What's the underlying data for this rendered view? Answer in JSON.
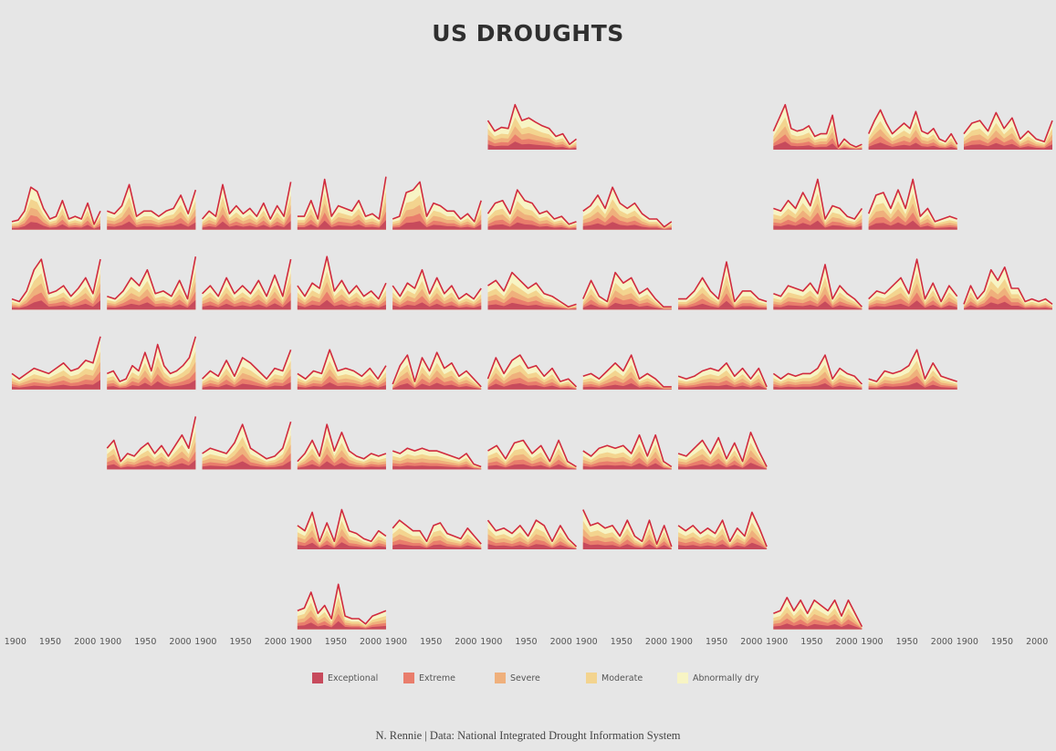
{
  "title": "US DROUGHTS",
  "caption": "N. Rennie | Data: National Integrated Drought Information System",
  "chart_data": {
    "type": "area",
    "layout": "small multiples (state tile grid map), stacked area per state",
    "x_range": [
      1895,
      2022
    ],
    "x_ticks": [
      "1900",
      "1950",
      "2000"
    ],
    "colors": {
      "Abnormally dry": "#f7f4c4",
      "Moderate": "#f3d48f",
      "Severe": "#efb07c",
      "Extreme": "#e97d6c",
      "Exceptional": "#c74a5c",
      "outline": "#d02a3e"
    },
    "legend": [
      {
        "label": "Exceptional",
        "color": "#c74a5c"
      },
      {
        "label": "Extreme",
        "color": "#e97d6c"
      },
      {
        "label": "Severe",
        "color": "#efb07c"
      },
      {
        "label": "Moderate",
        "color": "#f3d48f"
      },
      {
        "label": "Abnormally dry",
        "color": "#f7f4c4"
      }
    ],
    "tiles": [
      {
        "row": 0,
        "col": 5,
        "values": [
          0.55,
          0.35,
          0.42,
          0.4,
          0.85,
          0.55,
          0.6,
          0.52,
          0.45,
          0.4,
          0.25,
          0.3,
          0.1,
          0.2
        ]
      },
      {
        "row": 0,
        "col": 8,
        "values": [
          0.35,
          0.6,
          0.85,
          0.4,
          0.35,
          0.38,
          0.45,
          0.25,
          0.3,
          0.3,
          0.65,
          0.05,
          0.2,
          0.1,
          0.05,
          0.1
        ]
      },
      {
        "row": 0,
        "col": 9,
        "values": [
          0.3,
          0.55,
          0.75,
          0.5,
          0.3,
          0.4,
          0.5,
          0.4,
          0.72,
          0.35,
          0.3,
          0.4,
          0.2,
          0.15,
          0.3,
          0.1
        ]
      },
      {
        "row": 0,
        "col": 10,
        "values": [
          0.3,
          0.5,
          0.55,
          0.35,
          0.7,
          0.4,
          0.6,
          0.2,
          0.35,
          0.2,
          0.15,
          0.55
        ]
      },
      {
        "row": 1,
        "col": 0,
        "values": [
          0.15,
          0.18,
          0.35,
          0.8,
          0.72,
          0.4,
          0.2,
          0.25,
          0.55,
          0.2,
          0.25,
          0.2,
          0.5,
          0.1,
          0.35
        ]
      },
      {
        "row": 1,
        "col": 1,
        "values": [
          0.35,
          0.3,
          0.45,
          0.85,
          0.25,
          0.35,
          0.35,
          0.25,
          0.35,
          0.4,
          0.65,
          0.3,
          0.75
        ]
      },
      {
        "row": 1,
        "col": 2,
        "values": [
          0.2,
          0.35,
          0.25,
          0.85,
          0.3,
          0.45,
          0.3,
          0.4,
          0.25,
          0.5,
          0.2,
          0.45,
          0.25,
          0.9
        ]
      },
      {
        "row": 1,
        "col": 3,
        "values": [
          0.25,
          0.25,
          0.55,
          0.2,
          0.95,
          0.25,
          0.45,
          0.4,
          0.35,
          0.55,
          0.25,
          0.3,
          0.2,
          1.0
        ]
      },
      {
        "row": 1,
        "col": 4,
        "values": [
          0.2,
          0.25,
          0.7,
          0.75,
          0.9,
          0.25,
          0.5,
          0.45,
          0.35,
          0.35,
          0.2,
          0.3,
          0.15,
          0.55
        ]
      },
      {
        "row": 1,
        "col": 5,
        "values": [
          0.3,
          0.5,
          0.55,
          0.3,
          0.75,
          0.55,
          0.5,
          0.3,
          0.35,
          0.2,
          0.25,
          0.1,
          0.15
        ]
      },
      {
        "row": 1,
        "col": 6,
        "values": [
          0.35,
          0.45,
          0.65,
          0.4,
          0.8,
          0.5,
          0.4,
          0.5,
          0.3,
          0.2,
          0.2,
          0.05,
          0.15
        ]
      },
      {
        "row": 1,
        "col": 8,
        "values": [
          0.4,
          0.35,
          0.55,
          0.4,
          0.7,
          0.45,
          0.95,
          0.2,
          0.45,
          0.4,
          0.25,
          0.2,
          0.4
        ]
      },
      {
        "row": 1,
        "col": 9,
        "values": [
          0.3,
          0.65,
          0.7,
          0.4,
          0.75,
          0.4,
          0.95,
          0.25,
          0.4,
          0.15,
          0.2,
          0.25,
          0.2
        ]
      },
      {
        "row": 2,
        "col": 0,
        "values": [
          0.2,
          0.15,
          0.35,
          0.75,
          0.95,
          0.3,
          0.35,
          0.45,
          0.25,
          0.4,
          0.6,
          0.3,
          0.95
        ]
      },
      {
        "row": 2,
        "col": 1,
        "values": [
          0.25,
          0.2,
          0.35,
          0.6,
          0.45,
          0.75,
          0.3,
          0.35,
          0.25,
          0.55,
          0.2,
          1.0
        ]
      },
      {
        "row": 2,
        "col": 2,
        "values": [
          0.3,
          0.45,
          0.25,
          0.6,
          0.3,
          0.45,
          0.3,
          0.55,
          0.25,
          0.65,
          0.25,
          0.95
        ]
      },
      {
        "row": 2,
        "col": 3,
        "values": [
          0.45,
          0.25,
          0.5,
          0.4,
          1.0,
          0.35,
          0.55,
          0.3,
          0.45,
          0.25,
          0.35,
          0.2,
          0.5
        ]
      },
      {
        "row": 2,
        "col": 4,
        "values": [
          0.45,
          0.25,
          0.5,
          0.4,
          0.75,
          0.3,
          0.6,
          0.3,
          0.45,
          0.2,
          0.3,
          0.2,
          0.4
        ]
      },
      {
        "row": 2,
        "col": 5,
        "values": [
          0.45,
          0.55,
          0.35,
          0.7,
          0.55,
          0.4,
          0.5,
          0.3,
          0.25,
          0.15,
          0.05,
          0.1
        ]
      },
      {
        "row": 2,
        "col": 6,
        "values": [
          0.2,
          0.55,
          0.25,
          0.15,
          0.7,
          0.5,
          0.6,
          0.3,
          0.4,
          0.2,
          0.05,
          0.05
        ]
      },
      {
        "row": 2,
        "col": 7,
        "values": [
          0.2,
          0.2,
          0.35,
          0.6,
          0.35,
          0.2,
          0.9,
          0.15,
          0.35,
          0.35,
          0.2,
          0.15
        ]
      },
      {
        "row": 2,
        "col": 8,
        "values": [
          0.3,
          0.25,
          0.45,
          0.4,
          0.35,
          0.5,
          0.3,
          0.85,
          0.2,
          0.45,
          0.3,
          0.2,
          0.05
        ]
      },
      {
        "row": 2,
        "col": 9,
        "values": [
          0.2,
          0.35,
          0.3,
          0.45,
          0.6,
          0.3,
          0.95,
          0.2,
          0.5,
          0.15,
          0.45,
          0.25
        ]
      },
      {
        "row": 2,
        "col": 10,
        "values": [
          0.1,
          0.45,
          0.2,
          0.35,
          0.75,
          0.55,
          0.8,
          0.4,
          0.4,
          0.15,
          0.2,
          0.15,
          0.2,
          0.1
        ]
      },
      {
        "row": 3,
        "col": 0,
        "values": [
          0.3,
          0.2,
          0.3,
          0.4,
          0.35,
          0.3,
          0.4,
          0.5,
          0.35,
          0.4,
          0.55,
          0.5,
          1.0
        ]
      },
      {
        "row": 3,
        "col": 1,
        "values": [
          0.3,
          0.35,
          0.15,
          0.2,
          0.45,
          0.35,
          0.7,
          0.35,
          0.85,
          0.45,
          0.3,
          0.35,
          0.45,
          0.6,
          1.0
        ]
      },
      {
        "row": 3,
        "col": 2,
        "values": [
          0.2,
          0.35,
          0.25,
          0.55,
          0.25,
          0.6,
          0.5,
          0.35,
          0.2,
          0.4,
          0.35,
          0.75
        ]
      },
      {
        "row": 3,
        "col": 3,
        "values": [
          0.3,
          0.2,
          0.35,
          0.3,
          0.75,
          0.35,
          0.4,
          0.35,
          0.25,
          0.4,
          0.2,
          0.45
        ]
      },
      {
        "row": 3,
        "col": 4,
        "values": [
          0.1,
          0.45,
          0.65,
          0.15,
          0.6,
          0.35,
          0.7,
          0.4,
          0.5,
          0.25,
          0.35,
          0.2,
          0.05
        ]
      },
      {
        "row": 3,
        "col": 5,
        "values": [
          0.2,
          0.6,
          0.3,
          0.55,
          0.65,
          0.4,
          0.45,
          0.25,
          0.4,
          0.15,
          0.2,
          0.05
        ]
      },
      {
        "row": 3,
        "col": 6,
        "values": [
          0.25,
          0.3,
          0.2,
          0.35,
          0.5,
          0.35,
          0.65,
          0.2,
          0.3,
          0.2,
          0.05,
          0.05
        ]
      },
      {
        "row": 3,
        "col": 7,
        "values": [
          0.25,
          0.2,
          0.25,
          0.35,
          0.4,
          0.35,
          0.5,
          0.25,
          0.4,
          0.2,
          0.4,
          0.05
        ]
      },
      {
        "row": 3,
        "col": 8,
        "values": [
          0.3,
          0.2,
          0.3,
          0.25,
          0.3,
          0.3,
          0.4,
          0.65,
          0.2,
          0.4,
          0.3,
          0.25,
          0.1
        ]
      },
      {
        "row": 3,
        "col": 9,
        "values": [
          0.2,
          0.15,
          0.35,
          0.3,
          0.35,
          0.45,
          0.75,
          0.2,
          0.5,
          0.25,
          0.2,
          0.15
        ]
      },
      {
        "row": 4,
        "col": 1,
        "values": [
          0.4,
          0.55,
          0.15,
          0.3,
          0.25,
          0.4,
          0.5,
          0.3,
          0.45,
          0.25,
          0.45,
          0.65,
          0.4,
          1.0
        ]
      },
      {
        "row": 4,
        "col": 2,
        "values": [
          0.3,
          0.4,
          0.35,
          0.3,
          0.5,
          0.85,
          0.4,
          0.3,
          0.2,
          0.25,
          0.4,
          0.9
        ]
      },
      {
        "row": 4,
        "col": 3,
        "values": [
          0.15,
          0.3,
          0.55,
          0.25,
          0.85,
          0.35,
          0.7,
          0.35,
          0.25,
          0.2,
          0.3,
          0.25,
          0.3
        ]
      },
      {
        "row": 4,
        "col": 4,
        "values": [
          0.35,
          0.3,
          0.4,
          0.35,
          0.4,
          0.35,
          0.35,
          0.3,
          0.25,
          0.2,
          0.3,
          0.1,
          0.05
        ]
      },
      {
        "row": 4,
        "col": 5,
        "values": [
          0.35,
          0.45,
          0.2,
          0.5,
          0.55,
          0.3,
          0.45,
          0.15,
          0.55,
          0.15,
          0.05
        ]
      },
      {
        "row": 4,
        "col": 6,
        "values": [
          0.35,
          0.25,
          0.4,
          0.45,
          0.4,
          0.45,
          0.3,
          0.65,
          0.25,
          0.65,
          0.15,
          0.05
        ]
      },
      {
        "row": 4,
        "col": 7,
        "values": [
          0.3,
          0.25,
          0.4,
          0.55,
          0.3,
          0.6,
          0.2,
          0.5,
          0.15,
          0.7,
          0.35,
          0.05
        ]
      },
      {
        "row": 5,
        "col": 3,
        "values": [
          0.45,
          0.35,
          0.7,
          0.15,
          0.5,
          0.15,
          0.75,
          0.35,
          0.3,
          0.2,
          0.15,
          0.35,
          0.25
        ]
      },
      {
        "row": 5,
        "col": 4,
        "values": [
          0.4,
          0.55,
          0.45,
          0.35,
          0.35,
          0.15,
          0.45,
          0.5,
          0.3,
          0.25,
          0.2,
          0.4,
          0.25,
          0.1
        ]
      },
      {
        "row": 5,
        "col": 5,
        "values": [
          0.55,
          0.35,
          0.4,
          0.3,
          0.45,
          0.25,
          0.55,
          0.45,
          0.15,
          0.45,
          0.2,
          0.05
        ]
      },
      {
        "row": 5,
        "col": 6,
        "values": [
          0.75,
          0.45,
          0.5,
          0.4,
          0.45,
          0.25,
          0.55,
          0.25,
          0.15,
          0.55,
          0.1,
          0.45,
          0.05
        ]
      },
      {
        "row": 5,
        "col": 7,
        "values": [
          0.45,
          0.35,
          0.45,
          0.3,
          0.4,
          0.3,
          0.55,
          0.15,
          0.4,
          0.25,
          0.7,
          0.4,
          0.05
        ]
      },
      {
        "row": 6,
        "col": 3,
        "values": [
          0.35,
          0.4,
          0.7,
          0.3,
          0.45,
          0.2,
          0.85,
          0.25,
          0.2,
          0.2,
          0.1,
          0.25,
          0.3,
          0.35
        ]
      },
      {
        "row": 6,
        "col": 8,
        "values": [
          0.3,
          0.35,
          0.6,
          0.35,
          0.55,
          0.3,
          0.55,
          0.45,
          0.35,
          0.55,
          0.25,
          0.55,
          0.3,
          0.05
        ]
      }
    ]
  }
}
